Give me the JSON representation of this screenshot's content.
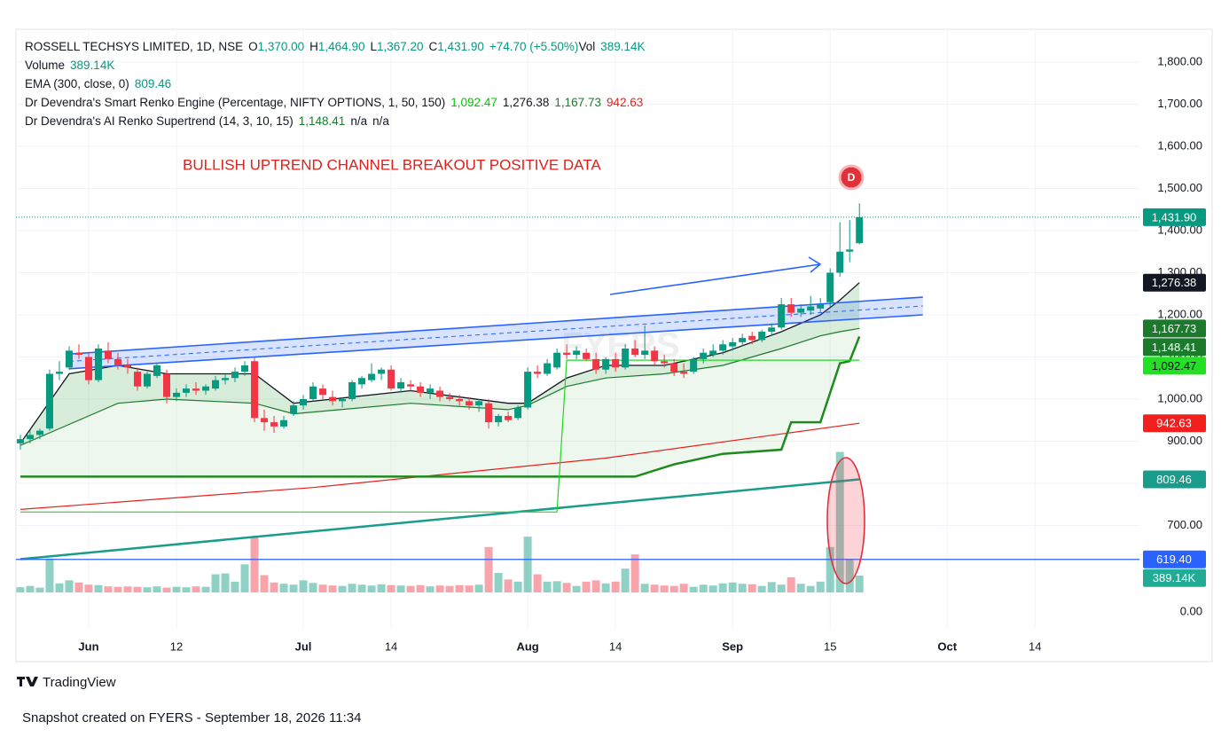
{
  "chart_data": {
    "type": "candlestick",
    "legend": [
      [
        {
          "text": "ROSSELL TECHSYS LIMITED, 1D, NSE",
          "color": "#131722"
        },
        {
          "text": "O",
          "color": "#131722"
        },
        {
          "text": "1,370.00",
          "color": "#089981"
        },
        {
          "text": "H",
          "color": "#131722"
        },
        {
          "text": "1,464.90",
          "color": "#089981"
        },
        {
          "text": "L",
          "color": "#131722"
        },
        {
          "text": "1,367.20",
          "color": "#089981"
        },
        {
          "text": "C",
          "color": "#131722"
        },
        {
          "text": "1,431.90",
          "color": "#089981"
        },
        {
          "text": "+74.70 (+5.50%)",
          "color": "#089981"
        },
        {
          "text": "Vol",
          "color": "#131722"
        },
        {
          "text": "389.14K",
          "color": "#089981"
        }
      ],
      [
        {
          "text": "Volume",
          "color": "#131722"
        },
        {
          "text": "389.14K",
          "color": "#089981"
        }
      ],
      [
        {
          "text": "EMA (300, close, 0)",
          "color": "#131722"
        },
        {
          "text": "809.46",
          "color": "#089981"
        }
      ],
      [
        {
          "text": "Dr Devendra's Smart Renko Engine (Percentage, NIFTY OPTIONS, 1, 50, 150)",
          "color": "#131722"
        },
        {
          "text": "1,092.47",
          "color": "#00c800"
        },
        {
          "text": "1,276.38",
          "color": "#131722"
        },
        {
          "text": "1,167.73",
          "color": "#1b7a2c"
        },
        {
          "text": "942.63",
          "color": "#e8201b"
        }
      ],
      [
        {
          "text": "Dr Devendra's AI Renko Supertrend (14, 3, 10, 15)",
          "color": "#131722"
        },
        {
          "text": "1,148.41",
          "color": "#1b7a2c"
        },
        {
          "text": "n/a",
          "color": "#131722"
        },
        {
          "text": "n/a",
          "color": "#131722"
        }
      ]
    ],
    "annotation": "BULLISH UPTREND CHANNEL BREAKOUT POSITIVE DATA",
    "marker": "D",
    "watermark": "FYERS",
    "xlim": [
      -0.45,
      114.7
    ],
    "xticks": [
      {
        "value": 7,
        "label": "Jun"
      },
      {
        "value": 16,
        "label": "12"
      },
      {
        "value": 29,
        "label": "Jul"
      },
      {
        "value": 38,
        "label": "14"
      },
      {
        "value": 52,
        "label": "Aug"
      },
      {
        "value": 61,
        "label": "14"
      },
      {
        "value": 73,
        "label": "Sep"
      },
      {
        "value": 83,
        "label": "15"
      },
      {
        "value": 95,
        "label": "Oct"
      },
      {
        "value": 104,
        "label": "14"
      }
    ],
    "ylim": [
      376.8,
      1877.9
    ],
    "yticks": [
      {
        "value": 700,
        "label": "700.00"
      },
      {
        "value": 800,
        "label": "800.00"
      },
      {
        "value": 900,
        "label": "900.00"
      },
      {
        "value": 1000,
        "label": "1,000.00"
      },
      {
        "value": 1100,
        "label": "1,100.00"
      },
      {
        "value": 1200,
        "label": "1,200.00"
      },
      {
        "value": 1300,
        "label": "1,300.00"
      },
      {
        "value": 1400,
        "label": "1,400.00"
      },
      {
        "value": 1500,
        "label": "1,500.00"
      },
      {
        "value": 1600,
        "label": "1,600.00"
      },
      {
        "value": 1700,
        "label": "1,700.00"
      },
      {
        "value": 1800,
        "label": "1,800.00"
      }
    ],
    "up_color": "#089981",
    "down_color": "#f23645",
    "ohlc": [
      [
        895,
        915,
        880,
        905
      ],
      [
        905,
        925,
        895,
        915
      ],
      [
        915,
        930,
        905,
        925
      ],
      [
        930,
        1070,
        925,
        1060
      ],
      [
        1060,
        1090,
        1045,
        1065
      ],
      [
        1075,
        1125,
        1070,
        1115
      ],
      [
        1110,
        1130,
        1095,
        1105
      ],
      [
        1100,
        1110,
        1035,
        1045
      ],
      [
        1045,
        1130,
        1040,
        1120
      ],
      [
        1115,
        1135,
        1085,
        1095
      ],
      [
        1095,
        1110,
        1070,
        1080
      ],
      [
        1080,
        1095,
        1060,
        1075
      ],
      [
        1065,
        1075,
        1020,
        1030
      ],
      [
        1030,
        1065,
        1025,
        1060
      ],
      [
        1055,
        1085,
        1050,
        1080
      ],
      [
        1060,
        1070,
        990,
        1005
      ],
      [
        1005,
        1025,
        995,
        1015
      ],
      [
        1015,
        1035,
        1005,
        1025
      ],
      [
        1025,
        1040,
        1010,
        1020
      ],
      [
        1020,
        1035,
        1010,
        1030
      ],
      [
        1025,
        1055,
        1020,
        1045
      ],
      [
        1045,
        1060,
        1035,
        1050
      ],
      [
        1050,
        1075,
        1040,
        1065
      ],
      [
        1065,
        1090,
        1055,
        1080
      ],
      [
        1090,
        1100,
        945,
        955
      ],
      [
        955,
        975,
        925,
        945
      ],
      [
        945,
        960,
        920,
        935
      ],
      [
        935,
        960,
        930,
        950
      ],
      [
        965,
        995,
        960,
        985
      ],
      [
        985,
        1010,
        975,
        1000
      ],
      [
        1000,
        1040,
        995,
        1030
      ],
      [
        1025,
        1035,
        1000,
        1010
      ],
      [
        1005,
        1020,
        985,
        995
      ],
      [
        995,
        1005,
        980,
        1000
      ],
      [
        1000,
        1045,
        995,
        1040
      ],
      [
        1035,
        1055,
        1025,
        1050
      ],
      [
        1045,
        1085,
        1040,
        1060
      ],
      [
        1060,
        1075,
        1045,
        1070
      ],
      [
        1070,
        1080,
        1020,
        1025
      ],
      [
        1025,
        1050,
        1015,
        1040
      ],
      [
        1035,
        1045,
        1020,
        1030
      ],
      [
        1030,
        1040,
        1005,
        1015
      ],
      [
        1015,
        1035,
        1000,
        1025
      ],
      [
        1020,
        1030,
        995,
        1005
      ],
      [
        1005,
        1015,
        995,
        1000
      ],
      [
        1000,
        1010,
        985,
        995
      ],
      [
        995,
        1005,
        975,
        985
      ],
      [
        985,
        1000,
        970,
        995
      ],
      [
        990,
        1000,
        930,
        945
      ],
      [
        945,
        965,
        935,
        960
      ],
      [
        960,
        970,
        945,
        950
      ],
      [
        955,
        985,
        950,
        980
      ],
      [
        980,
        1075,
        975,
        1065
      ],
      [
        1065,
        1080,
        1050,
        1060
      ],
      [
        1060,
        1095,
        1055,
        1085
      ],
      [
        1075,
        1120,
        1070,
        1110
      ],
      [
        1110,
        1130,
        1095,
        1105
      ],
      [
        1105,
        1125,
        1095,
        1115
      ],
      [
        1110,
        1120,
        1090,
        1095
      ],
      [
        1095,
        1110,
        1060,
        1070
      ],
      [
        1070,
        1100,
        1060,
        1095
      ],
      [
        1095,
        1110,
        1065,
        1075
      ],
      [
        1075,
        1130,
        1070,
        1120
      ],
      [
        1120,
        1140,
        1100,
        1105
      ],
      [
        1105,
        1175,
        1095,
        1115
      ],
      [
        1115,
        1125,
        1080,
        1090
      ],
      [
        1090,
        1105,
        1075,
        1085
      ],
      [
        1085,
        1095,
        1055,
        1065
      ],
      [
        1065,
        1085,
        1050,
        1060
      ],
      [
        1065,
        1100,
        1060,
        1095
      ],
      [
        1095,
        1120,
        1085,
        1110
      ],
      [
        1105,
        1130,
        1100,
        1115
      ],
      [
        1115,
        1140,
        1105,
        1130
      ],
      [
        1125,
        1145,
        1115,
        1135
      ],
      [
        1135,
        1155,
        1125,
        1145
      ],
      [
        1150,
        1160,
        1130,
        1140
      ],
      [
        1140,
        1165,
        1135,
        1160
      ],
      [
        1160,
        1180,
        1150,
        1170
      ],
      [
        1170,
        1240,
        1165,
        1225
      ],
      [
        1225,
        1240,
        1195,
        1205
      ],
      [
        1205,
        1225,
        1195,
        1215
      ],
      [
        1210,
        1245,
        1200,
        1220
      ],
      [
        1215,
        1240,
        1205,
        1225
      ],
      [
        1230,
        1310,
        1220,
        1300
      ],
      [
        1300,
        1420,
        1290,
        1350
      ],
      [
        1350,
        1425,
        1325,
        1355
      ],
      [
        1370,
        1464.9,
        1367.2,
        1431.9
      ]
    ],
    "volume": {
      "vlim": [
        0,
        4000000
      ],
      "vticks": [
        {
          "value": 0,
          "label": "0.00"
        }
      ],
      "values": [
        120000,
        150000,
        110000,
        780000,
        210000,
        280000,
        230000,
        180000,
        170000,
        140000,
        130000,
        140000,
        130000,
        120000,
        140000,
        110000,
        130000,
        120000,
        140000,
        130000,
        420000,
        440000,
        250000,
        650000,
        1300000,
        400000,
        230000,
        200000,
        180000,
        280000,
        220000,
        180000,
        160000,
        150000,
        200000,
        180000,
        160000,
        190000,
        170000,
        160000,
        150000,
        170000,
        140000,
        160000,
        150000,
        170000,
        160000,
        180000,
        1050000,
        450000,
        300000,
        250000,
        1290000,
        420000,
        250000,
        260000,
        220000,
        150000,
        250000,
        280000,
        210000,
        250000,
        550000,
        880000,
        200000,
        180000,
        160000,
        150000,
        200000,
        130000,
        180000,
        160000,
        210000,
        230000,
        200000,
        190000,
        150000,
        240000,
        180000,
        350000,
        200000,
        150000,
        250000,
        1050000,
        3250000,
        780000,
        389140
      ],
      "value_labels": {
        "86": "389.14K"
      },
      "label_color": "#22ab94"
    },
    "area": {
      "x": [
        0,
        5,
        10,
        15,
        24,
        28,
        40,
        50,
        52,
        56,
        60,
        66,
        72,
        78,
        82,
        84,
        86
      ],
      "upper": [
        895,
        1060,
        1080,
        1060,
        1060,
        990,
        1020,
        990,
        990,
        1050,
        1080,
        1080,
        1110,
        1160,
        1200,
        1235,
        1276.38
      ],
      "lower": [
        890,
        940,
        990,
        1000,
        990,
        965,
        990,
        975,
        985,
        1030,
        1050,
        1060,
        1080,
        1120,
        1150,
        1160,
        1167.73
      ],
      "upper_color": "#131722",
      "lower_color": "#1b7a2c",
      "fill": "rgba(76,175,80,0.22)"
    },
    "lines": [
      {
        "color": "#1a9c8c",
        "width": 2.5,
        "x": [
          0,
          86
        ],
        "values": [
          620,
          809.46
        ]
      },
      {
        "color": "#e8201b",
        "width": 1.2,
        "x": [
          0,
          30,
          60,
          86
        ],
        "values": [
          738,
          790,
          860,
          942.63
        ]
      },
      {
        "color": "#1f8a1f",
        "width": 2.5,
        "x": [
          0,
          63,
          67,
          72,
          78,
          79,
          82,
          84,
          85,
          86
        ],
        "values": [
          816,
          816,
          845,
          870,
          880,
          945,
          945,
          1085,
          1090,
          1148.41
        ]
      },
      {
        "color": "#22d622",
        "width": 1.2,
        "x": [
          0,
          55,
          56,
          86
        ],
        "values": [
          732,
          732,
          1092.47,
          1092.47
        ]
      }
    ],
    "channel": {
      "x": [
        5,
        92.5
      ],
      "upper": [
        1107,
        1242
      ],
      "lower": [
        1072,
        1200
      ],
      "color": "#2962ff"
    },
    "hline": {
      "value": 619.4,
      "color": "#2962ff"
    },
    "last_price_line": {
      "value": 1431.9,
      "color": "#089981"
    },
    "price_labels": [
      {
        "value": 1431.9,
        "label": "1,431.90",
        "color": "#089981",
        "text_color": "#ffffff"
      },
      {
        "value": 1276.38,
        "label": "1,276.38",
        "color": "#131722",
        "text_color": "#ffffff"
      },
      {
        "value": 1167.73,
        "label": "1,167.73",
        "color": "#1b7a2c",
        "text_color": "#ffffff"
      },
      {
        "value": 1148.41,
        "label": "1,148.41",
        "color": "#1b7a2c",
        "text_color": "#ffffff"
      },
      {
        "value": 1092.47,
        "label": "1,092.47",
        "color": "#22e022",
        "text_color": "#131722"
      },
      {
        "value": 942.63,
        "label": "942.63",
        "color": "#f21f1f",
        "text_color": "#ffffff"
      },
      {
        "value": 809.46,
        "label": "809.46",
        "color": "#1a9c8c",
        "text_color": "#ffffff"
      },
      {
        "value": 619.4,
        "label": "619.40",
        "color": "#2962ff",
        "text_color": "#ffffff"
      }
    ]
  },
  "footer": {
    "brand": "TradingView",
    "snapshot": "Snapshot created on FYERS - September 18, 2026 11:34"
  }
}
